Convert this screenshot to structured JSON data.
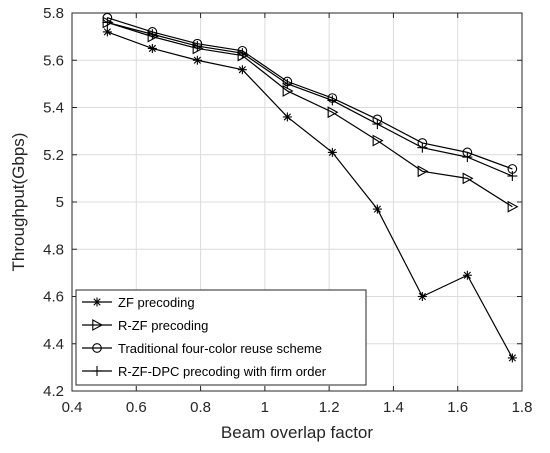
{
  "chart_data": {
    "type": "line",
    "xlabel": "Beam overlap factor",
    "ylabel": "Throughput(Gbps)",
    "xlim": [
      0.4,
      1.8
    ],
    "ylim": [
      4.2,
      5.8
    ],
    "x_ticks": [
      0.4,
      0.6,
      0.8,
      1.0,
      1.2,
      1.4,
      1.6,
      1.8
    ],
    "x_tick_labels": [
      "0.4",
      "0.6",
      "0.8",
      "1",
      "1.2",
      "1.4",
      "1.6",
      "1.8"
    ],
    "y_ticks": [
      4.2,
      4.4,
      4.6,
      4.8,
      5.0,
      5.2,
      5.4,
      5.6,
      5.8
    ],
    "y_tick_labels": [
      "4.2",
      "4.4",
      "4.6",
      "4.8",
      "5",
      "5.2",
      "5.4",
      "5.6",
      "5.8"
    ],
    "grid": true,
    "legend_position": "bottom-left",
    "x": [
      0.51,
      0.65,
      0.79,
      0.93,
      1.07,
      1.21,
      1.35,
      1.49,
      1.63,
      1.77
    ],
    "series": [
      {
        "name": "ZF precoding",
        "marker": "asterisk",
        "values": [
          5.72,
          5.65,
          5.6,
          5.56,
          5.36,
          5.21,
          4.97,
          4.6,
          4.69,
          4.34
        ]
      },
      {
        "name": "R-ZF precoding",
        "marker": "triangle-right",
        "values": [
          5.76,
          5.7,
          5.65,
          5.62,
          5.47,
          5.38,
          5.26,
          5.13,
          5.1,
          4.98
        ]
      },
      {
        "name": "Traditional four-color reuse scheme",
        "marker": "circle",
        "values": [
          5.78,
          5.72,
          5.67,
          5.64,
          5.51,
          5.44,
          5.35,
          5.25,
          5.21,
          5.14
        ]
      },
      {
        "name": "R-ZF-DPC precoding with firm order",
        "marker": "plus",
        "values": [
          5.76,
          5.71,
          5.66,
          5.63,
          5.5,
          5.43,
          5.33,
          5.23,
          5.19,
          5.11
        ]
      }
    ],
    "colors": {
      "line": "#000000",
      "grid": "#dcdcdc",
      "axis": "#262626"
    }
  }
}
